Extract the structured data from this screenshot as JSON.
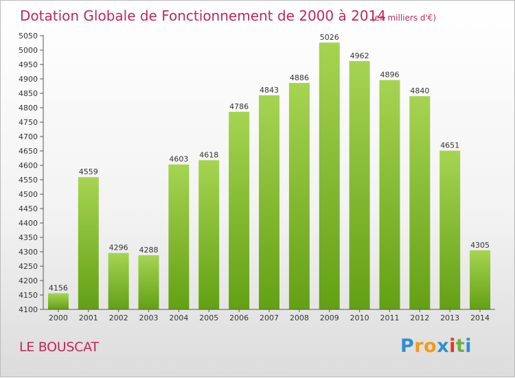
{
  "chart_data": {
    "type": "bar",
    "title": "Dotation Globale de Fonctionnement de 2000 à 2014",
    "subtitle": "(en milliers d'€)",
    "categories": [
      "2000",
      "2001",
      "2002",
      "2003",
      "2004",
      "2005",
      "2006",
      "2007",
      "2008",
      "2009",
      "2010",
      "2011",
      "2012",
      "2013",
      "2014"
    ],
    "values": [
      4156,
      4559,
      4296,
      4288,
      4603,
      4618,
      4786,
      4843,
      4886,
      5026,
      4962,
      4896,
      4840,
      4651,
      4305
    ],
    "ylim": [
      4100,
      5050
    ],
    "yticks": [
      4100,
      4150,
      4200,
      4250,
      4300,
      4350,
      4400,
      4450,
      4500,
      4550,
      4600,
      4650,
      4700,
      4750,
      4800,
      4850,
      4900,
      4950,
      5000,
      5050
    ],
    "grid": false,
    "xlabel": "",
    "ylabel": ""
  },
  "commune": "LE BOUSCAT",
  "logo": {
    "text": "Proxiti",
    "letter_colors": [
      "#2f8fd0",
      "#f39a1a",
      "#f39a1a",
      "#2f8fd0",
      "#e3342f",
      "#6cb33e",
      "#2f8fd0"
    ]
  },
  "colors": {
    "bar_light": "#a6d452",
    "bar_dark": "#63a014",
    "title": "#c0265b",
    "axis": "#555555"
  }
}
